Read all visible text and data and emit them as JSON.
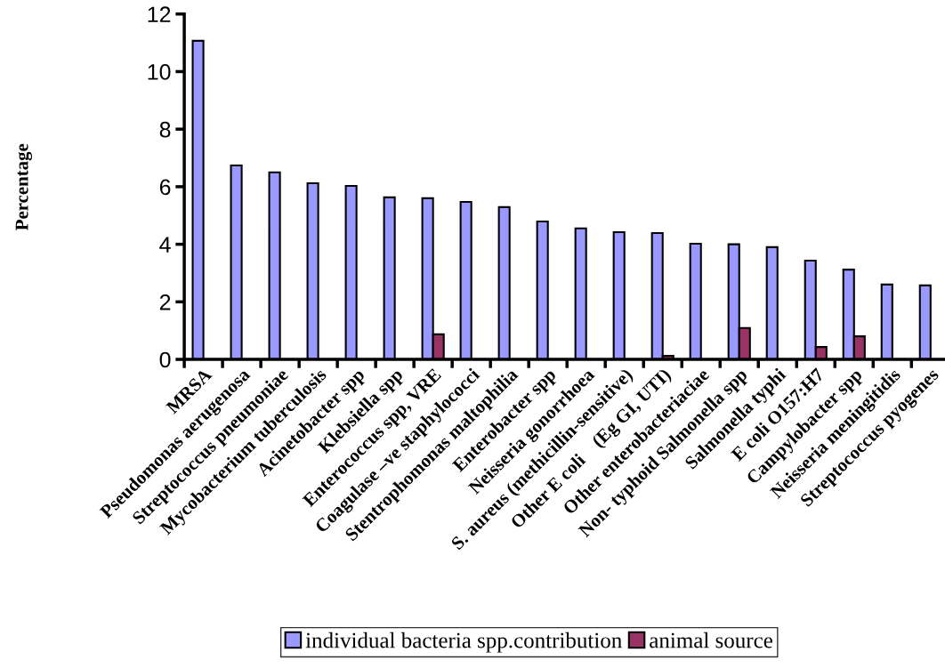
{
  "chart_data": {
    "type": "bar",
    "ylabel": "Percentage",
    "categories": [
      "MRSA",
      "Pseudomonas aerugenosa",
      "Streptococcus pneumoniae",
      "Mycobacterium tuberculosis",
      "Acinetobacter spp",
      "Klebsiella spp",
      "Enterococcus spp, VRE",
      "Coagulase –ve staphylococci",
      "Stentrophomonas maltophilia",
      "Enterobacter spp",
      "Neisseria gonorrhoea",
      "S. aureus (methicillin-sensitive)",
      "Other E coli    (Eg GI, UTI)",
      "Other enterobacteriaciae",
      "Non- typhoid Salmonella spp",
      "Salmonella typhi",
      "E coli O157:H7",
      "Campylobacter spp",
      "Neisseria meningitidis",
      "Streptococcus pyogenes"
    ],
    "series": [
      {
        "name": "individual bacteria spp.contribution",
        "color": "#9999ff",
        "values": [
          11.07,
          6.74,
          6.5,
          6.12,
          6.03,
          5.63,
          5.6,
          5.47,
          5.29,
          4.79,
          4.55,
          4.42,
          4.39,
          4.02,
          4.0,
          3.9,
          3.43,
          3.12,
          2.6,
          2.57
        ]
      },
      {
        "name": "animal source",
        "color": "#993366",
        "values": [
          null,
          null,
          null,
          null,
          null,
          null,
          0.87,
          null,
          null,
          null,
          null,
          null,
          0.12,
          null,
          1.09,
          null,
          0.43,
          0.8,
          null,
          null
        ]
      }
    ],
    "ylim": [
      0,
      12
    ],
    "yticks": [
      0,
      2,
      4,
      6,
      8,
      10,
      12
    ],
    "grid": false,
    "legend": "bottom"
  }
}
